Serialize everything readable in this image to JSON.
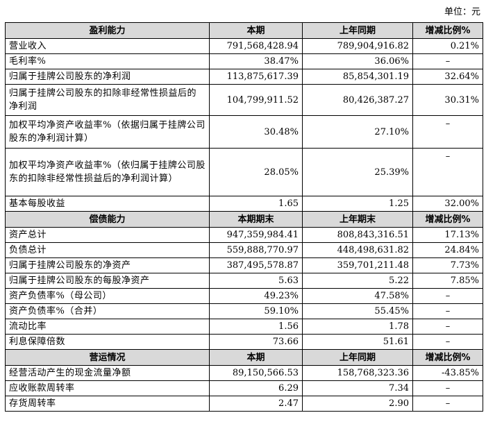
{
  "unit_label": "单位：元",
  "sections": [
    {
      "header": [
        "盈利能力",
        "本期",
        "上年同期",
        "增减比例%"
      ],
      "rows": [
        {
          "label": "营业收入",
          "a": "791,568,428.94",
          "b": "789,904,916.82",
          "c": "0.21%"
        },
        {
          "label": "毛利率%",
          "a": "38.47%",
          "b": "36.06%",
          "c": "–"
        },
        {
          "label": "归属于挂牌公司股东的净利润",
          "a": "113,875,617.39",
          "b": "85,854,301.19",
          "c": "32.64%"
        },
        {
          "label": "归属于挂牌公司股东的扣除非经常性损益后的净利润",
          "a": "104,799,911.52",
          "b": "80,426,387.27",
          "c": "30.31%"
        },
        {
          "label": "加权平均净资产收益率%（依据归属于挂牌公司股东的净利润计算）",
          "a": "30.48%",
          "b": "27.10%",
          "c": "–"
        },
        {
          "label": "加权平均净资产收益率%（依归属于挂牌公司股东的扣除非经常性损益后的净利润计算）",
          "a": "28.05%",
          "b": "25.39%",
          "c": "–"
        },
        {
          "label": "基本每股收益",
          "a": "1.65",
          "b": "1.25",
          "c": "32.00%"
        }
      ]
    },
    {
      "header": [
        "偿债能力",
        "本期期末",
        "上年期末",
        "增减比例%"
      ],
      "rows": [
        {
          "label": "资产总计",
          "a": "947,359,984.41",
          "b": "808,843,316.51",
          "c": "17.13%"
        },
        {
          "label": "负债总计",
          "a": "559,888,770.97",
          "b": "448,498,631.82",
          "c": "24.84%"
        },
        {
          "label": "归属于挂牌公司股东的净资产",
          "a": "387,495,578.87",
          "b": "359,701,211.48",
          "c": "7.73%"
        },
        {
          "label": "归属于挂牌公司股东的每股净资产",
          "a": "5.63",
          "b": "5.22",
          "c": "7.85%"
        },
        {
          "label": "资产负债率%（母公司）",
          "a": "49.23%",
          "b": "47.58%",
          "c": "–"
        },
        {
          "label": "资产负债率%（合并）",
          "a": "59.10%",
          "b": "55.45%",
          "c": "–"
        },
        {
          "label": "流动比率",
          "a": "1.56",
          "b": "1.78",
          "c": "–"
        },
        {
          "label": "利息保障倍数",
          "a": "73.66",
          "b": "51.61",
          "c": "–"
        }
      ]
    },
    {
      "header": [
        "营运情况",
        "本期",
        "上年同期",
        "增减比例%"
      ],
      "rows": [
        {
          "label": "经营活动产生的现金流量净额",
          "a": "89,150,566.53",
          "b": "158,768,323.36",
          "c": "-43.85%"
        },
        {
          "label": "应收账款周转率",
          "a": "6.29",
          "b": "7.34",
          "c": "–"
        },
        {
          "label": "存货周转率",
          "a": "2.47",
          "b": "2.90",
          "c": "–"
        }
      ]
    }
  ]
}
